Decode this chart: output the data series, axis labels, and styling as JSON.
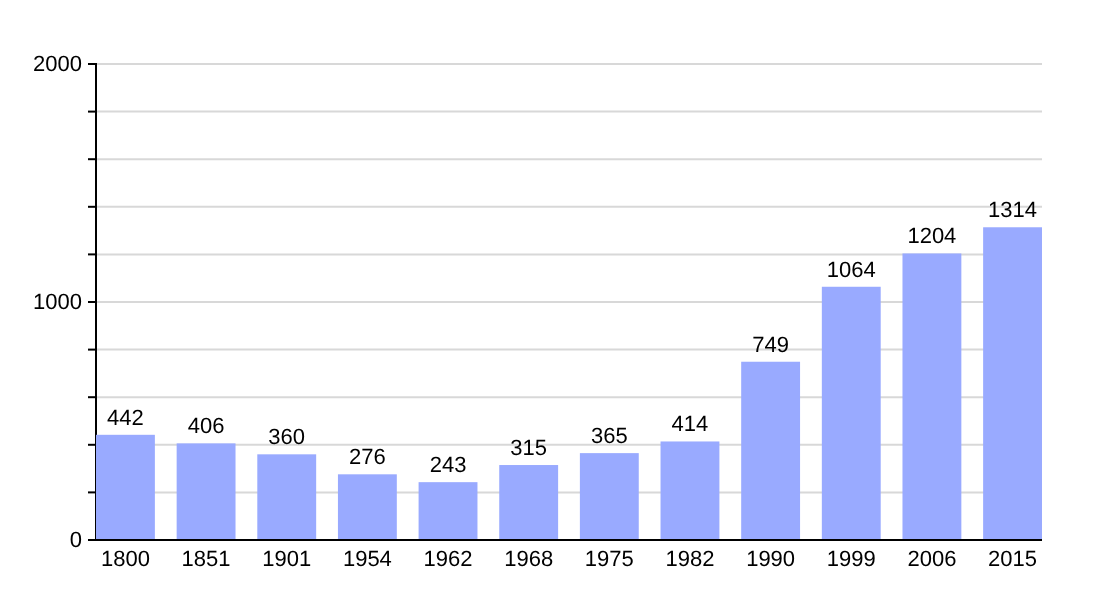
{
  "chart_data": {
    "type": "bar",
    "categories": [
      "1800",
      "1851",
      "1901",
      "1954",
      "1962",
      "1968",
      "1975",
      "1982",
      "1990",
      "1999",
      "2006",
      "2015"
    ],
    "values": [
      442,
      406,
      360,
      276,
      243,
      315,
      365,
      414,
      749,
      1064,
      1204,
      1314
    ],
    "color": "#99aaff",
    "ylim": [
      0,
      2000
    ],
    "yticks": [
      0,
      {
        "value": 200,
        "label": null
      },
      {
        "value": 400,
        "label": null
      },
      {
        "value": 600,
        "label": null
      },
      {
        "value": 800,
        "label": null
      },
      1000,
      {
        "value": 1200,
        "label": null
      },
      {
        "value": 1400,
        "label": null
      },
      {
        "value": 1600,
        "label": null
      },
      {
        "value": 1800,
        "label": null
      },
      2000
    ],
    "grid": true,
    "data_labels": true
  }
}
